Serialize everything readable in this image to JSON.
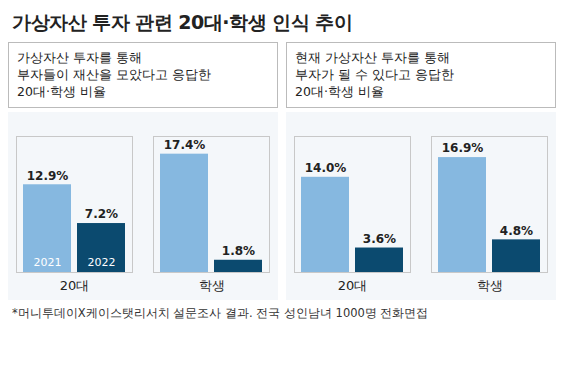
{
  "title": "가상자산 투자 관련 20대·학생 인식 추이",
  "source": "*머니투데이X케이스탯리서치 설문조사 결과. 전국 성인남녀 1000명 전화면접",
  "chart_data": [
    {
      "type": "bar",
      "title": "가상자산 투자를 통해\n부자들이 재산을 모았다고 응답한\n20대·학생 비율",
      "categories": [
        "20대",
        "학생"
      ],
      "series": [
        {
          "name": "2021",
          "color": "#86b8e0",
          "values": [
            12.9,
            17.4
          ],
          "value_labels": [
            "12.9%",
            "17.4%"
          ]
        },
        {
          "name": "2022",
          "color": "#0b4a6f",
          "values": [
            7.2,
            1.8
          ],
          "value_labels": [
            "7.2%",
            "1.8%"
          ]
        }
      ],
      "ylim": [
        0,
        20
      ],
      "data_labels": true,
      "tick_labels": "x",
      "legend": "inside"
    },
    {
      "type": "bar",
      "title": "현재 가상자산 투자를 통해\n부자가 될 수 있다고 응답한\n20대·학생 비율",
      "categories": [
        "20대",
        "학생"
      ],
      "series": [
        {
          "name": "2021",
          "color": "#86b8e0",
          "values": [
            14.0,
            16.9
          ],
          "value_labels": [
            "14.0%",
            "16.9%"
          ]
        },
        {
          "name": "2022",
          "color": "#0b4a6f",
          "values": [
            3.6,
            4.8
          ],
          "value_labels": [
            "3.6%",
            "4.8%"
          ]
        }
      ],
      "ylim": [
        0,
        20
      ],
      "data_labels": true,
      "tick_labels": "x"
    }
  ]
}
